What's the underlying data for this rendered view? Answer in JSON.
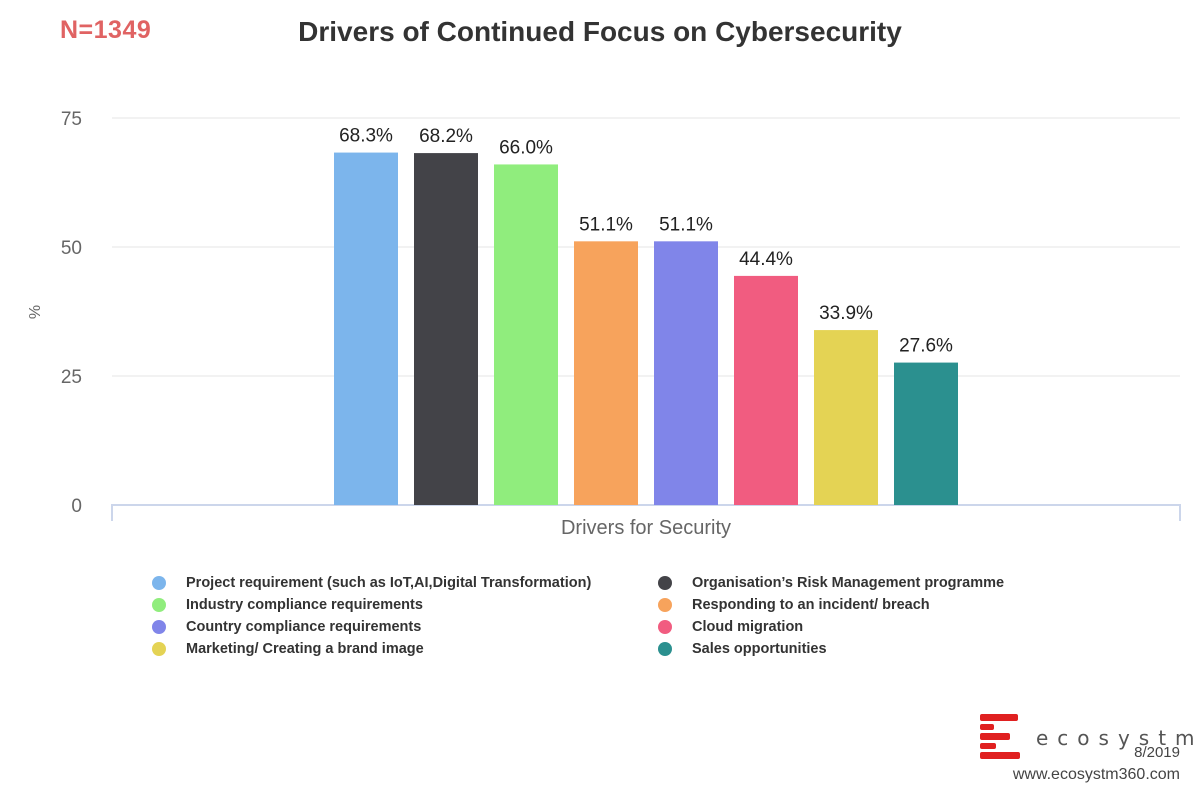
{
  "header": {
    "sample_size": "N=1349",
    "sample_color": "#e06363"
  },
  "chart_data": {
    "type": "bar",
    "title": "Drivers of Continued Focus on Cybersecurity",
    "xlabel": "Drivers for Security",
    "ylabel": "%",
    "ylim": [
      0,
      75
    ],
    "yticks": [
      "0",
      "25",
      "50",
      "75"
    ],
    "grid": true,
    "legend_position": "bottom",
    "series": [
      {
        "name": "Project requirement (such as IoT,AI,Digital Transformation)",
        "value": 68.3,
        "label": "68.3%",
        "color": "#7cb5ec"
      },
      {
        "name": "Organisation’s Risk Management programme",
        "value": 68.2,
        "label": "68.2%",
        "color": "#434348"
      },
      {
        "name": "Industry compliance requirements",
        "value": 66.0,
        "label": "66.0%",
        "color": "#90ed7d"
      },
      {
        "name": "Responding to an incident/ breach",
        "value": 51.1,
        "label": "51.1%",
        "color": "#f7a35c"
      },
      {
        "name": "Country compliance requirements",
        "value": 51.1,
        "label": "51.1%",
        "color": "#8085e9"
      },
      {
        "name": "Cloud migration",
        "value": 44.4,
        "label": "44.4%",
        "color": "#f15c80"
      },
      {
        "name": "Marketing/ Creating a brand image",
        "value": 33.9,
        "label": "33.9%",
        "color": "#e4d354"
      },
      {
        "name": "Sales opportunities",
        "value": 27.6,
        "label": "27.6%",
        "color": "#2b908f"
      }
    ]
  },
  "footer": {
    "brand": "ecosystm",
    "date": "8/2019",
    "url": "www.ecosystm360.com",
    "logo_color": "#e02020"
  }
}
